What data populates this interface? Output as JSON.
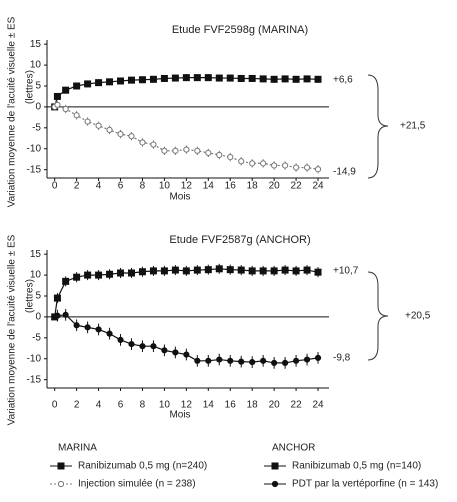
{
  "chart_data": [
    {
      "type": "line",
      "title": "Etude FVF2598g (MARINA)",
      "ylabel": "Variation moyenne de l'acuité visuelle ± ES",
      "xlabel": "Mois",
      "legend_title": "MARINA",
      "x": [
        0,
        0.25,
        1,
        2,
        3,
        4,
        5,
        6,
        7,
        8,
        9,
        10,
        11,
        12,
        13,
        14,
        15,
        16,
        17,
        18,
        19,
        20,
        21,
        22,
        23,
        24
      ],
      "xlim": [
        -0.7,
        25
      ],
      "xticks": [
        0,
        2,
        4,
        6,
        8,
        10,
        12,
        14,
        16,
        18,
        20,
        22,
        24
      ],
      "ylim": [
        -17,
        16
      ],
      "yticks": [
        -15,
        -10,
        -5,
        0,
        5,
        10,
        15
      ],
      "series": [
        {
          "name": "Ranibizumab 0,5 mg (n=240)",
          "color": "#111111",
          "marker": "square",
          "marker_fill": "#111111",
          "dash": "none",
          "values": [
            0,
            2.5,
            4,
            5,
            5.5,
            5.8,
            6,
            6.2,
            6.4,
            6.5,
            6.6,
            6.8,
            6.9,
            7,
            7,
            7,
            6.9,
            6.9,
            6.8,
            6.8,
            6.7,
            6.6,
            6.7,
            6.6,
            6.7,
            6.6
          ],
          "errors": [
            0,
            0.8,
            0.8,
            0.8,
            0.8,
            0.8,
            0.8,
            0.8,
            0.8,
            0.8,
            0.8,
            0.8,
            0.8,
            0.8,
            0.8,
            0.8,
            0.8,
            0.8,
            0.8,
            0.8,
            0.8,
            0.8,
            0.8,
            0.8,
            0.8,
            0.8
          ]
        },
        {
          "name": "Injection simulée (n = 238)",
          "color": "#777777",
          "marker": "circle",
          "marker_fill": "#ffffff",
          "dash": "2,2",
          "values": [
            0,
            0.5,
            -0.5,
            -2,
            -3.5,
            -4.5,
            -5.5,
            -6.5,
            -7,
            -8.5,
            -9,
            -10.5,
            -10.5,
            -10.2,
            -10.5,
            -11,
            -11.5,
            -12,
            -13,
            -13.5,
            -13.5,
            -14,
            -14,
            -14.5,
            -14.5,
            -14.9
          ],
          "errors": [
            0,
            1,
            1,
            1,
            1,
            1,
            1,
            1,
            1,
            1,
            1,
            1,
            1,
            1,
            1,
            1,
            1,
            1,
            1,
            1,
            1,
            1,
            1,
            1,
            1,
            1
          ]
        }
      ],
      "annotations": [
        {
          "text": "(lettres)"
        },
        {
          "text": "+6,6"
        },
        {
          "text": "-14,9"
        },
        {
          "text": "+21,5"
        }
      ]
    },
    {
      "type": "line",
      "title": "Etude FVF2587g (ANCHOR)",
      "ylabel": "Variation moyenne de l'acuité visuelle ± ES",
      "xlabel": "Mois",
      "legend_title": "ANCHOR",
      "x": [
        0,
        0.25,
        1,
        2,
        3,
        4,
        5,
        6,
        7,
        8,
        9,
        10,
        11,
        12,
        13,
        14,
        15,
        16,
        17,
        18,
        19,
        20,
        21,
        22,
        23,
        24
      ],
      "xlim": [
        -0.7,
        25
      ],
      "xticks": [
        0,
        2,
        4,
        6,
        8,
        10,
        12,
        14,
        16,
        18,
        20,
        22,
        24
      ],
      "ylim": [
        -17,
        16
      ],
      "yticks": [
        -15,
        -10,
        -5,
        0,
        5,
        10,
        15
      ],
      "series": [
        {
          "name": "Ranibizumab 0,5 mg (n=140)",
          "color": "#111111",
          "marker": "square",
          "marker_fill": "#111111",
          "dash": "none",
          "values": [
            0,
            4.5,
            8.5,
            9.5,
            10,
            10,
            10.2,
            10.5,
            10.5,
            10.8,
            11,
            11,
            11.2,
            11,
            11.2,
            11.3,
            11.5,
            11.3,
            11.2,
            11,
            11,
            11,
            11.2,
            11,
            11.2,
            10.7
          ],
          "errors": [
            0,
            1.2,
            1.2,
            1.2,
            1.2,
            1.2,
            1.2,
            1.2,
            1.2,
            1.2,
            1.2,
            1.2,
            1.2,
            1.2,
            1.2,
            1.2,
            1.2,
            1.2,
            1.2,
            1.2,
            1.2,
            1.2,
            1.2,
            1.2,
            1.2,
            1.2
          ]
        },
        {
          "name": "PDT par la vertéporfine (n = 143)",
          "color": "#111111",
          "marker": "circle",
          "marker_fill": "#111111",
          "dash": "none",
          "values": [
            0,
            0.3,
            0.5,
            -2,
            -2.5,
            -3,
            -4,
            -5.5,
            -6.5,
            -7,
            -7,
            -8,
            -8.5,
            -9,
            -10.5,
            -10.5,
            -10.2,
            -10.5,
            -10.7,
            -10.8,
            -10.5,
            -11,
            -11,
            -10.5,
            -10.2,
            -9.8
          ],
          "errors": [
            0,
            1.4,
            1.4,
            1.4,
            1.4,
            1.4,
            1.4,
            1.4,
            1.4,
            1.4,
            1.4,
            1.4,
            1.4,
            1.4,
            1.4,
            1.4,
            1.4,
            1.4,
            1.4,
            1.4,
            1.4,
            1.4,
            1.4,
            1.4,
            1.4,
            1.4
          ]
        }
      ],
      "annotations": [
        {
          "text": "(lettres)"
        },
        {
          "text": "+10,7"
        },
        {
          "text": "-9,8"
        },
        {
          "text": "+20,5"
        }
      ]
    }
  ]
}
